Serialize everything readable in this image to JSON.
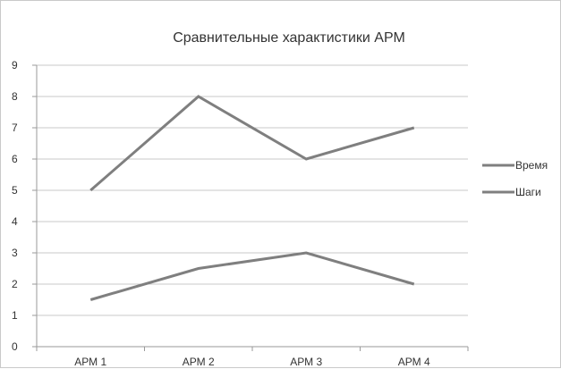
{
  "chart_data": {
    "type": "line",
    "title": "Сравнительные характистики АРМ",
    "xlabel": "",
    "ylabel": "",
    "categories": [
      "АРМ 1",
      "АРМ 2",
      "АРМ 3",
      "АРМ 4"
    ],
    "ylim": [
      0,
      9
    ],
    "yticks": [
      "0",
      "1",
      "2",
      "3",
      "4",
      "5",
      "6",
      "7",
      "8",
      "9"
    ],
    "grid": true,
    "legend_position": "right",
    "series": [
      {
        "name": "Время",
        "values": [
          1.5,
          2.5,
          3,
          2
        ],
        "color": "#7f7f7f"
      },
      {
        "name": "Шаги",
        "values": [
          5,
          8,
          6,
          7
        ],
        "color": "#7f7f7f"
      }
    ]
  }
}
